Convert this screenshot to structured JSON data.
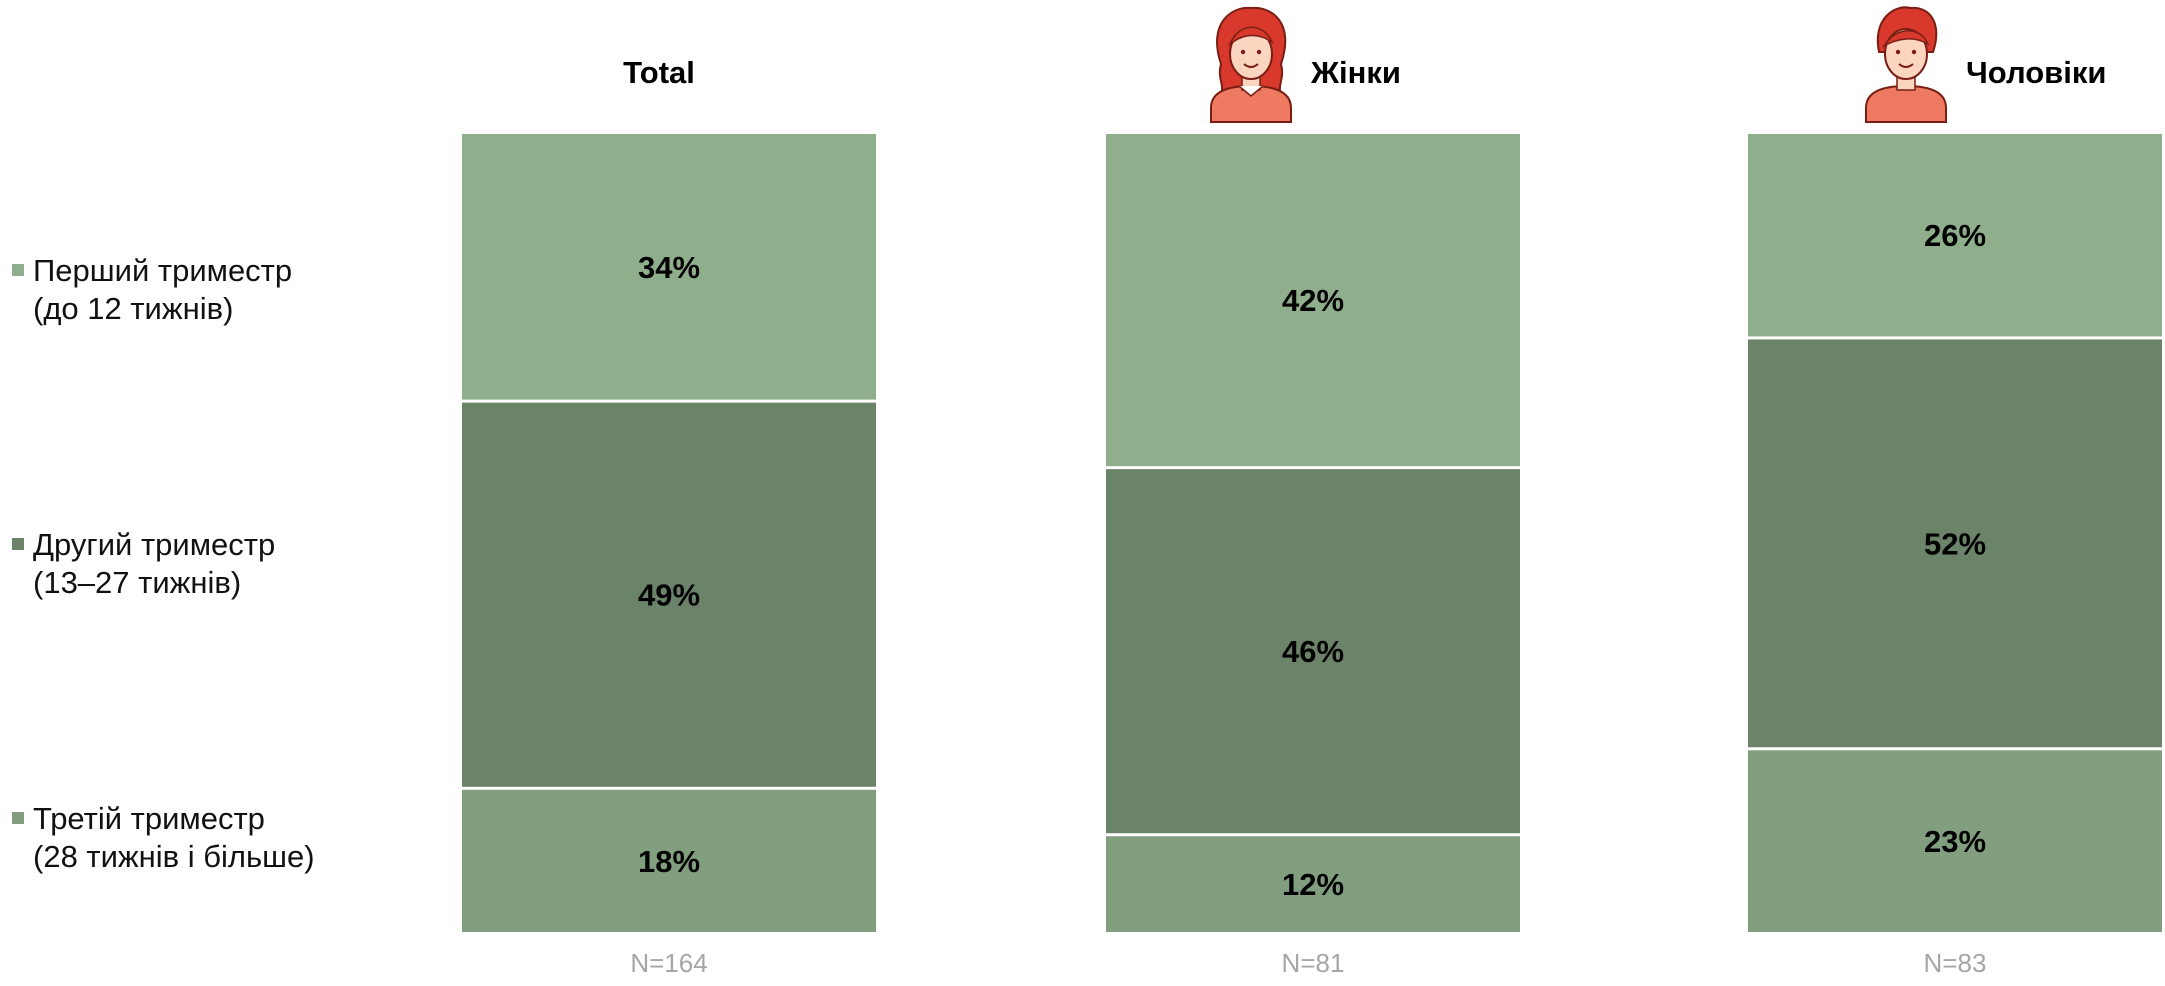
{
  "chart_data": {
    "type": "bar",
    "stacked": true,
    "orientation": "vertical",
    "ylim": [
      0,
      100
    ],
    "unit": "%",
    "categories": [
      "Total",
      "Жінки",
      "Чоловіки"
    ],
    "category_icons": [
      "",
      "woman-avatar-icon",
      "man-avatar-icon"
    ],
    "sample_sizes": [
      "N=164",
      "N=81",
      "N=83"
    ],
    "series": [
      {
        "name_line1": "Перший триместр",
        "name_line2": "(до 12 тижнів)",
        "color": "#8faf8c",
        "values": [
          34,
          42,
          26
        ],
        "labels": [
          "34%",
          "42%",
          "26%"
        ]
      },
      {
        "name_line1": "Другий триместр",
        "name_line2": "(13–27 тижнів)",
        "color": "#6b8369",
        "values": [
          49,
          46,
          52
        ],
        "labels": [
          "49%",
          "46%",
          "52%"
        ]
      },
      {
        "name_line1": "Третій триместр",
        "name_line2": "(28 тижнів і більше)",
        "color": "#819e7f",
        "values": [
          18,
          12,
          23
        ],
        "labels": [
          "18%",
          "12%",
          "23%"
        ]
      }
    ],
    "legend_position": "left",
    "grid": false,
    "colors": {
      "sample_text": "#a6a6a6",
      "avatar_hair": "#d8392c",
      "avatar_skin": "#fbd5c0",
      "avatar_shirt": "#ee7a62",
      "avatar_outline": "#7a1e14"
    }
  }
}
